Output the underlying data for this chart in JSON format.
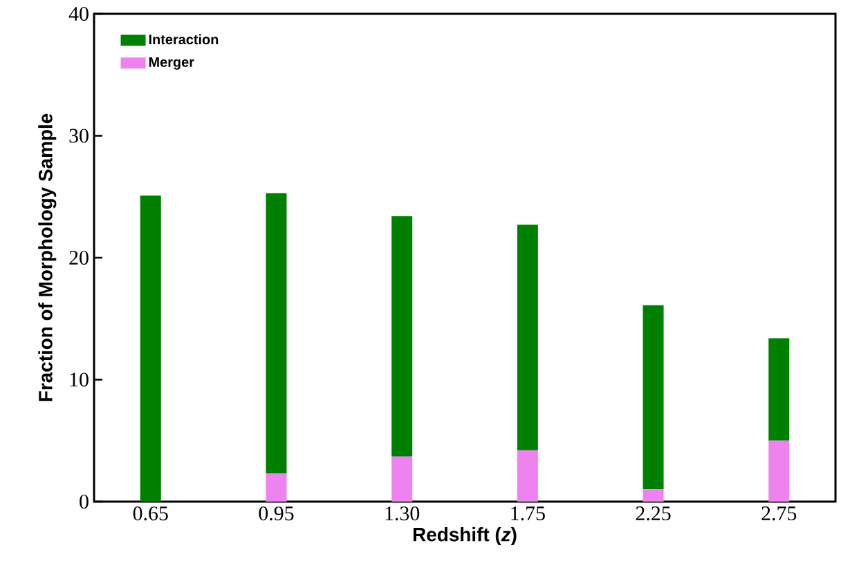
{
  "chart_data": {
    "type": "bar",
    "stacked": true,
    "xlabel": "Redshift (*z*)",
    "ylabel": "Fraction of Morphology Sample",
    "categories": [
      "0.65",
      "0.95",
      "1.30",
      "1.75",
      "2.25",
      "2.75"
    ],
    "series": [
      {
        "name": "Merger",
        "color": "#ee82ee",
        "values": [
          0,
          2.3,
          3.7,
          4.2,
          1.0,
          5.0
        ]
      },
      {
        "name": "Interaction",
        "color": "#008000",
        "values": [
          25.1,
          23.0,
          19.7,
          18.5,
          15.1,
          8.4
        ]
      }
    ],
    "ylim": [
      0,
      40
    ],
    "yticks": [
      0,
      10,
      20,
      30,
      40
    ],
    "legend": "top left"
  }
}
